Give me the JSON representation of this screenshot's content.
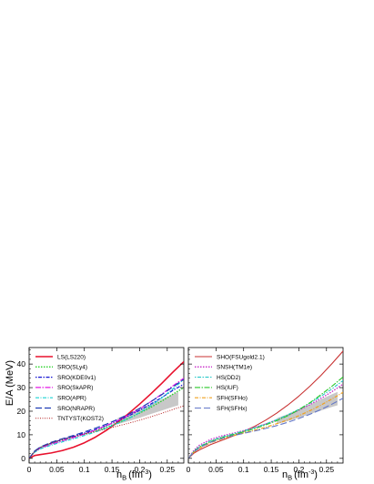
{
  "chart_data": [
    {
      "type": "line",
      "panel": "left",
      "xlabel": "n",
      "xlabel_sub": "B",
      "xlabel_unit": "(fm",
      "xlabel_unit_sup": "-3",
      "xlabel_unit_close": ")",
      "ylabel": "E/A (MeV)",
      "xlim": [
        0,
        0.28
      ],
      "ylim": [
        -2,
        47
      ],
      "xticks": [
        0,
        0.05,
        0.1,
        0.15,
        0.2,
        0.25
      ],
      "xtick_labels": [
        "0",
        "0.05",
        "0.1",
        "0.15",
        "0.2",
        "0.25"
      ],
      "yticks": [
        0,
        10,
        20,
        30,
        40
      ],
      "ytick_labels": [
        "0",
        "10",
        "20",
        "30",
        "40"
      ],
      "legend_position": "top-left",
      "band": {
        "x": [
          0.16,
          0.18,
          0.2,
          0.22,
          0.24,
          0.26,
          0.27
        ],
        "lower": [
          14.5,
          15.8,
          17.2,
          18.8,
          20.3,
          21.8,
          22.5
        ],
        "upper": [
          17.0,
          18.8,
          20.8,
          22.8,
          25.0,
          27.2,
          28.2
        ],
        "color": "#c8c8c8"
      },
      "x": [
        0,
        0.01,
        0.02,
        0.04,
        0.06,
        0.08,
        0.1,
        0.12,
        0.14,
        0.16,
        0.18,
        0.2,
        0.22,
        0.24,
        0.26,
        0.28
      ],
      "series": [
        {
          "name": "LS(LS220)",
          "color": "#e8112d",
          "dash": "",
          "width": 1.6,
          "values": [
            0,
            1.2,
            1.6,
            2.3,
            3.3,
            4.7,
            6.6,
            9.0,
            11.9,
            15.3,
            19.0,
            23.0,
            27.3,
            31.8,
            36.5,
            41.0
          ]
        },
        {
          "name": "SRO(SLy4)",
          "color": "#27d227",
          "dash": "1.5,1.5",
          "width": 1.4,
          "values": [
            0,
            3.0,
            4.6,
            6.4,
            7.8,
            9.0,
            10.3,
            11.7,
            13.2,
            15.0,
            17.0,
            19.2,
            21.6,
            24.3,
            27.2,
            30.0
          ]
        },
        {
          "name": "SRO(KDE0v1)",
          "color": "#1414d2",
          "dash": "1.5,1.5,4,1.5",
          "width": 1.2,
          "values": [
            0,
            3.0,
            4.6,
            6.5,
            8.0,
            9.3,
            10.7,
            12.2,
            13.9,
            15.8,
            18.0,
            20.4,
            23.0,
            25.8,
            28.8,
            31.5
          ]
        },
        {
          "name": "SRO(SkAPR)",
          "color": "#e619e6",
          "dash": "6,1.5,1.5,1.5",
          "width": 1.2,
          "values": [
            0,
            2.8,
            4.3,
            6.0,
            7.4,
            8.8,
            10.3,
            12.0,
            13.9,
            16.0,
            18.4,
            21.0,
            24.0,
            27.2,
            30.7,
            34.0
          ]
        },
        {
          "name": "SRO(APR)",
          "color": "#19d2d2",
          "dash": "4,1.5,1,1.5",
          "width": 1.2,
          "values": [
            0,
            2.6,
            4.0,
            5.6,
            7.0,
            8.3,
            9.7,
            11.2,
            12.9,
            14.8,
            16.9,
            19.4,
            22.3,
            25.6,
            29.4,
            33.5
          ]
        },
        {
          "name": "SRO(NRAPR)",
          "color": "#1e3cb4",
          "dash": "7,3",
          "width": 1.2,
          "values": [
            0,
            3.1,
            4.8,
            6.8,
            8.3,
            9.7,
            11.2,
            12.8,
            14.5,
            16.5,
            18.7,
            21.2,
            24.0,
            27.0,
            30.3,
            33.5
          ]
        },
        {
          "name": "TNTYST(KOST2)",
          "color": "#b41e1e",
          "dash": "1,1.5",
          "width": 1.0,
          "values": [
            0,
            2.8,
            4.5,
            6.5,
            8.0,
            9.2,
            10.3,
            11.4,
            12.5,
            13.7,
            14.9,
            16.2,
            17.6,
            19.1,
            20.7,
            22.3
          ]
        }
      ]
    },
    {
      "type": "line",
      "panel": "right",
      "xlabel": "n",
      "xlabel_sub": "B",
      "xlabel_unit": "(fm",
      "xlabel_unit_sup": "-3",
      "xlabel_unit_close": ")",
      "xlim": [
        0,
        0.28
      ],
      "ylim": [
        -2,
        47
      ],
      "xticks": [
        0,
        0.05,
        0.1,
        0.15,
        0.2,
        0.25
      ],
      "xtick_labels": [
        "0",
        "0.05",
        "0.1",
        "0.15",
        "0.2",
        "0.25"
      ],
      "legend_position": "top-left",
      "band": {
        "x": [
          0.16,
          0.18,
          0.2,
          0.22,
          0.24,
          0.26,
          0.27
        ],
        "lower": [
          14.5,
          15.8,
          17.2,
          18.8,
          20.3,
          21.8,
          22.5
        ],
        "upper": [
          17.0,
          18.8,
          20.8,
          22.8,
          25.0,
          27.2,
          28.2
        ],
        "color": "#c8c8c8"
      },
      "x": [
        0,
        0.01,
        0.02,
        0.04,
        0.06,
        0.08,
        0.1,
        0.12,
        0.14,
        0.16,
        0.18,
        0.2,
        0.22,
        0.24,
        0.26,
        0.28
      ],
      "series": [
        {
          "name": "SHO(FSUgold2.1)",
          "color": "#c83232",
          "dash": "",
          "width": 1.1,
          "values": [
            0,
            2.2,
            3.6,
            5.8,
            7.6,
            9.4,
            11.4,
            13.6,
            16.2,
            19.2,
            22.6,
            26.4,
            30.6,
            35.2,
            40.2,
            45.5
          ]
        },
        {
          "name": "SNSH(TM1e)",
          "color": "#c828c8",
          "dash": "1.5,1.5",
          "width": 1.3,
          "values": [
            0,
            3.4,
            5.6,
            8.0,
            9.5,
            10.6,
            11.8,
            13.1,
            14.6,
            16.3,
            18.2,
            20.4,
            22.8,
            25.4,
            28.3,
            31.5
          ]
        },
        {
          "name": "HS(DD2)",
          "color": "#28c8c8",
          "dash": "1.5,1.5,4,1.5",
          "width": 1.1,
          "values": [
            0,
            3.0,
            5.0,
            7.4,
            9.0,
            10.3,
            11.6,
            13.0,
            14.6,
            16.4,
            18.5,
            20.8,
            23.4,
            26.3,
            29.5,
            33.0
          ]
        },
        {
          "name": "HS(IUF)",
          "color": "#28c828",
          "dash": "6,1.5,1.5,1.5",
          "width": 1.1,
          "values": [
            0,
            2.9,
            4.8,
            7.1,
            8.7,
            10.0,
            11.2,
            12.6,
            14.2,
            16.0,
            18.1,
            20.6,
            23.6,
            27.0,
            30.6,
            34.5
          ]
        },
        {
          "name": "SFH(SFHo)",
          "color": "#f0a01e",
          "dash": "4,1.5,1,1.5",
          "width": 1.2,
          "values": [
            0,
            2.6,
            4.3,
            6.6,
            8.2,
            9.5,
            10.7,
            11.9,
            13.2,
            14.7,
            16.3,
            18.1,
            20.2,
            22.6,
            25.2,
            28.0
          ]
        },
        {
          "name": "SFH(SFHx)",
          "color": "#6478c8",
          "dash": "7,3",
          "width": 1.1,
          "values": [
            0,
            2.7,
            4.5,
            6.8,
            8.4,
            9.6,
            10.6,
            11.6,
            12.7,
            13.9,
            15.3,
            16.9,
            18.7,
            20.7,
            23.0,
            25.5
          ]
        }
      ]
    }
  ]
}
